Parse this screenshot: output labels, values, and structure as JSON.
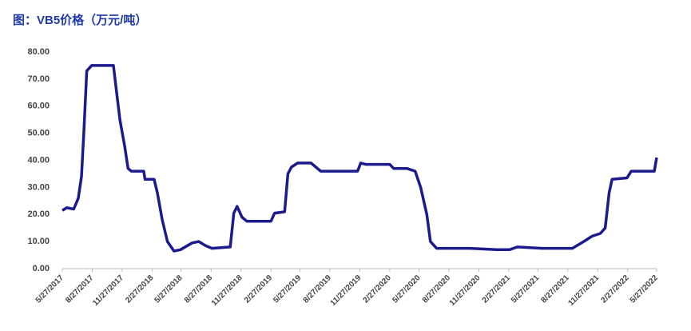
{
  "chart_data": {
    "type": "line",
    "title": "图：VB5价格（万元/吨）",
    "x": [
      "5/27/2017",
      "6/10/2017",
      "7/1/2017",
      "7/15/2017",
      "7/25/2017",
      "8/1/2017",
      "8/5/2017",
      "8/10/2017",
      "8/25/2017",
      "10/31/2017",
      "11/8/2017",
      "11/20/2017",
      "12/5/2017",
      "12/15/2017",
      "12/25/2017",
      "2/1/2018",
      "2/5/2018",
      "3/5/2018",
      "3/15/2018",
      "3/30/2018",
      "4/15/2018",
      "5/5/2018",
      "5/25/2018",
      "6/30/2018",
      "7/20/2018",
      "8/10/2018",
      "8/30/2018",
      "10/25/2018",
      "11/5/2018",
      "11/15/2018",
      "11/30/2018",
      "12/15/2018",
      "2/27/2019",
      "3/10/2019",
      "4/10/2019",
      "4/20/2019",
      "5/1/2019",
      "5/20/2019",
      "6/30/2019",
      "7/30/2019",
      "11/20/2019",
      "11/30/2019",
      "12/15/2019",
      "2/27/2020",
      "3/10/2020",
      "4/20/2020",
      "5/15/2020",
      "6/1/2020",
      "6/20/2020",
      "7/1/2020",
      "7/20/2020",
      "10/31/2020",
      "1/20/2021",
      "3/1/2021",
      "3/25/2021",
      "6/10/2021",
      "9/10/2021",
      "10/15/2021",
      "11/10/2021",
      "12/5/2021",
      "12/20/2021",
      "1/1/2022",
      "1/10/2022",
      "2/25/2022",
      "3/10/2022",
      "5/20/2022",
      "5/27/2022"
    ],
    "series": [
      {
        "color": "#1b1b8c",
        "values": [
          21.5,
          22.5,
          22,
          26,
          34,
          50,
          60,
          73,
          75,
          75,
          67,
          55,
          45,
          37,
          36,
          36,
          33,
          33,
          28,
          18,
          10,
          6.5,
          7,
          9.5,
          10,
          8.5,
          7.5,
          8,
          20.5,
          23,
          19,
          17.5,
          17.5,
          20.5,
          21,
          35,
          37.5,
          39,
          39,
          36,
          36,
          39,
          38.5,
          38.5,
          37,
          37,
          36,
          30,
          20,
          10,
          7.5,
          7.5,
          7,
          7,
          8,
          7.5,
          7.5,
          10,
          12,
          13,
          15,
          28,
          33,
          33.5,
          36,
          36,
          41
        ]
      }
    ],
    "xlim": [
      "5/27/2017",
      "5/27/2022"
    ],
    "xticks": [
      "5/27/2017",
      "8/27/2017",
      "11/27/2017",
      "2/27/2018",
      "5/27/2018",
      "8/27/2018",
      "11/27/2018",
      "2/27/2019",
      "5/27/2019",
      "8/27/2019",
      "11/27/2019",
      "2/27/2020",
      "5/27/2020",
      "8/27/2020",
      "11/27/2020",
      "2/27/2021",
      "5/27/2021",
      "8/27/2021",
      "11/27/2021",
      "2/27/2022",
      "5/27/2022"
    ],
    "ylim": [
      0,
      80
    ],
    "yticks": [
      {
        "value": 0,
        "label": "0.00"
      },
      {
        "value": 10,
        "label": "10.00"
      },
      {
        "value": 20,
        "label": "20.00"
      },
      {
        "value": 30,
        "label": "30.00"
      },
      {
        "value": 40,
        "label": "40.00"
      },
      {
        "value": 50,
        "label": "50.00"
      },
      {
        "value": 60,
        "label": "60.00"
      },
      {
        "value": 70,
        "label": "70.00"
      },
      {
        "value": 80,
        "label": "80.00"
      }
    ],
    "grid": false
  }
}
